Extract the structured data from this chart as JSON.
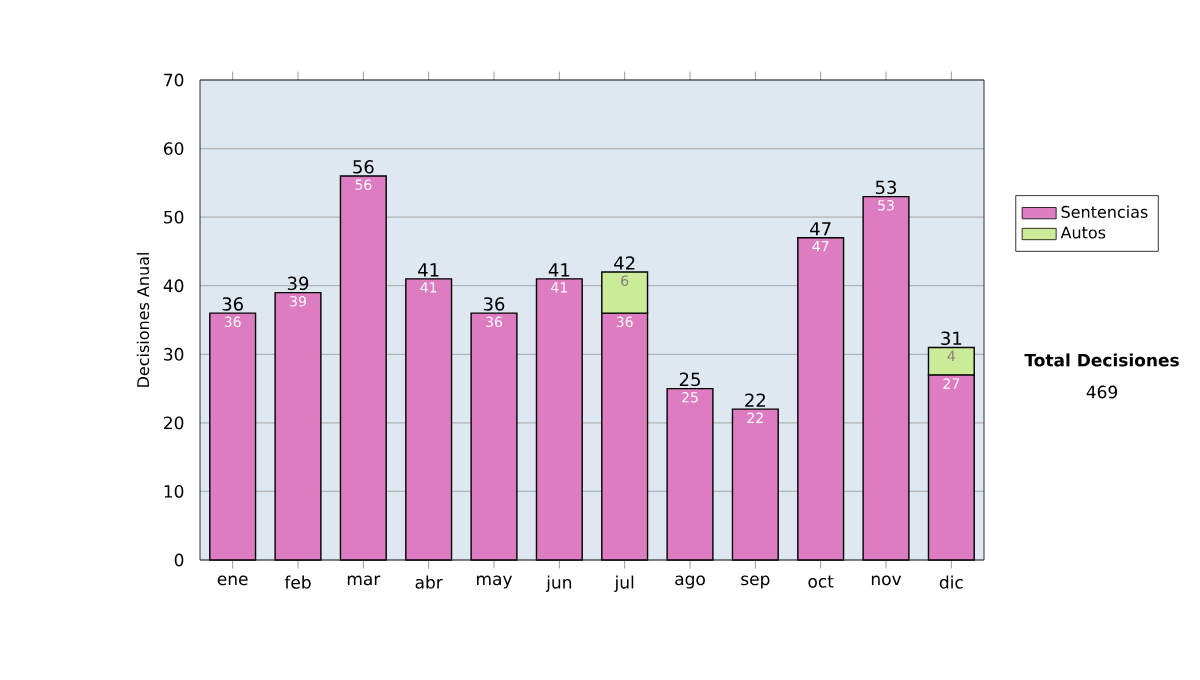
{
  "chart_data": {
    "type": "bar",
    "ylabel": "Decisiones Anual",
    "categories": [
      "ene",
      "feb",
      "mar",
      "abr",
      "may",
      "jun",
      "jul",
      "ago",
      "sep",
      "oct",
      "nov",
      "dic"
    ],
    "series": [
      {
        "name": "Sentencias",
        "color": "#dd7cc0",
        "values": [
          36,
          39,
          56,
          41,
          36,
          41,
          36,
          25,
          22,
          47,
          53,
          27
        ]
      },
      {
        "name": "Autos",
        "color": "#cceb99",
        "values": [
          null,
          null,
          null,
          null,
          null,
          null,
          6,
          null,
          null,
          null,
          null,
          4
        ]
      }
    ],
    "stacked": true,
    "data_labels": true,
    "totals": [
      "36",
      "39",
      "56",
      "41",
      "36",
      "41",
      "42",
      "25",
      "22",
      "47",
      "53",
      "31"
    ],
    "ylim": [
      0,
      70
    ],
    "yticks": [
      0,
      10,
      20,
      30,
      40,
      50,
      60,
      70
    ],
    "grid": "y",
    "legend": "right",
    "annotations": [
      "Total Decisiones",
      "469"
    ]
  }
}
